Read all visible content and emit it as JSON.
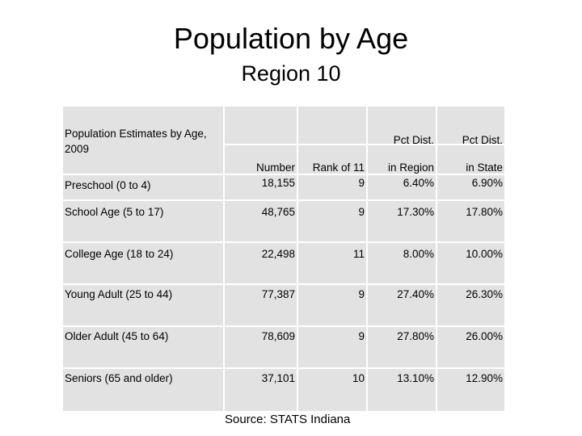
{
  "title": "Population by Age",
  "subtitle": "Region 10",
  "table": {
    "corner_label": "Population Estimates by Age, 2009",
    "col_headers_top": [
      "",
      "",
      "Pct Dist.",
      "Pct Dist."
    ],
    "col_headers_bottom": [
      "Number",
      "Rank of 11",
      "in Region",
      "in State"
    ],
    "rows": [
      {
        "label": "Preschool (0 to 4)",
        "number": "18,155",
        "rank": "9",
        "pct_region": "6.40%",
        "pct_state": "6.90%"
      },
      {
        "label": "School Age (5 to 17)",
        "number": "48,765",
        "rank": "9",
        "pct_region": "17.30%",
        "pct_state": "17.80%"
      },
      {
        "label": "College Age (18 to 24)",
        "number": "22,498",
        "rank": "11",
        "pct_region": "8.00%",
        "pct_state": "10.00%"
      },
      {
        "label": "Young Adult (25 to 44)",
        "number": "77,387",
        "rank": "9",
        "pct_region": "27.40%",
        "pct_state": "26.30%"
      },
      {
        "label": "Older Adult (45 to 64)",
        "number": "78,609",
        "rank": "9",
        "pct_region": "27.80%",
        "pct_state": "26.00%"
      },
      {
        "label": "Seniors (65 and older)",
        "number": "37,101",
        "rank": "10",
        "pct_region": "13.10%",
        "pct_state": "12.90%"
      }
    ]
  },
  "source": "Source:  STATS Indiana"
}
